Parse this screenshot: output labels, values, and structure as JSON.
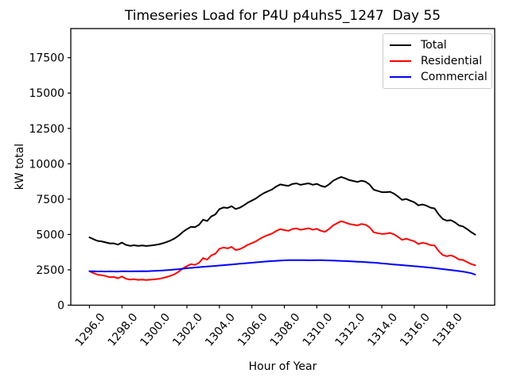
{
  "chart_data": {
    "type": "line",
    "title": "Timeseries Load for P4U p4uhs5_1247  Day 55",
    "xlabel": "Hour of Year",
    "ylabel": "kW total",
    "grid": false,
    "legend_position": "upper right",
    "xlim": [
      1294.85,
      1320.95
    ],
    "ylim": [
      0,
      19560
    ],
    "xticks": [
      1296,
      1298,
      1300,
      1302,
      1304,
      1306,
      1308,
      1310,
      1312,
      1314,
      1316,
      1318
    ],
    "xtick_labels": [
      "1296.0",
      "1298.0",
      "1300.0",
      "1302.0",
      "1304.0",
      "1306.0",
      "1308.0",
      "1310.0",
      "1312.0",
      "1314.0",
      "1316.0",
      "1318.0"
    ],
    "yticks": [
      0,
      2500,
      5000,
      7500,
      10000,
      12500,
      15000,
      17500
    ],
    "ytick_labels": [
      "0",
      "2500",
      "5000",
      "7500",
      "10000",
      "12500",
      "15000",
      "17500"
    ],
    "xtick_label_rotation_deg": 50,
    "x": [
      1296.0,
      1296.25,
      1296.5,
      1296.75,
      1297.0,
      1297.25,
      1297.5,
      1297.75,
      1298.0,
      1298.25,
      1298.5,
      1298.75,
      1299.0,
      1299.25,
      1299.5,
      1299.75,
      1300.0,
      1300.25,
      1300.5,
      1300.75,
      1301.0,
      1301.25,
      1301.5,
      1301.75,
      1302.0,
      1302.25,
      1302.5,
      1302.75,
      1303.0,
      1303.25,
      1303.5,
      1303.75,
      1304.0,
      1304.25,
      1304.5,
      1304.75,
      1305.0,
      1305.25,
      1305.5,
      1305.75,
      1306.0,
      1306.25,
      1306.5,
      1306.75,
      1307.0,
      1307.25,
      1307.5,
      1307.75,
      1308.0,
      1308.25,
      1308.5,
      1308.75,
      1309.0,
      1309.25,
      1309.5,
      1309.75,
      1310.0,
      1310.25,
      1310.5,
      1310.75,
      1311.0,
      1311.25,
      1311.5,
      1311.75,
      1312.0,
      1312.25,
      1312.5,
      1312.75,
      1313.0,
      1313.25,
      1313.5,
      1313.75,
      1314.0,
      1314.25,
      1314.5,
      1314.75,
      1315.0,
      1315.25,
      1315.5,
      1315.75,
      1316.0,
      1316.25,
      1316.5,
      1316.75,
      1317.0,
      1317.25,
      1317.5,
      1317.75,
      1318.0,
      1318.25,
      1318.5,
      1318.75,
      1319.0,
      1319.25,
      1319.5,
      1319.75
    ],
    "series": [
      {
        "name": "Total",
        "color": "#000000",
        "values": [
          4800,
          4665,
          4545,
          4510,
          4440,
          4370,
          4375,
          4280,
          4430,
          4265,
          4200,
          4240,
          4190,
          4220,
          4185,
          4215,
          4255,
          4300,
          4375,
          4465,
          4580,
          4725,
          4930,
          5180,
          5375,
          5540,
          5515,
          5690,
          6045,
          5955,
          6275,
          6420,
          6795,
          6910,
          6875,
          7000,
          6805,
          6890,
          7055,
          7250,
          7395,
          7550,
          7755,
          7930,
          8060,
          8190,
          8390,
          8535,
          8480,
          8440,
          8575,
          8615,
          8510,
          8570,
          8615,
          8515,
          8580,
          8440,
          8362,
          8545,
          8795,
          8945,
          9072,
          8970,
          8848,
          8782,
          8718,
          8802,
          8735,
          8528,
          8168,
          8078,
          7995,
          7990,
          8020,
          7890,
          7680,
          7450,
          7510,
          7390,
          7280,
          7060,
          7120,
          7040,
          6900,
          6840,
          6420,
          6100,
          5980,
          6010,
          5860,
          5640,
          5570,
          5380,
          5170,
          4990
        ]
      },
      {
        "name": "Residential",
        "color": "#ff0000",
        "values": [
          2400,
          2270,
          2160,
          2120,
          2060,
          1980,
          1990,
          1900,
          2030,
          1870,
          1810,
          1840,
          1790,
          1810,
          1780,
          1800,
          1830,
          1860,
          1920,
          1990,
          2080,
          2200,
          2380,
          2600,
          2760,
          2900,
          2850,
          3000,
          3330,
          3220,
          3520,
          3640,
          3990,
          4080,
          4020,
          4120,
          3900,
          3960,
          4100,
          4270,
          4390,
          4520,
          4700,
          4850,
          4960,
          5070,
          5250,
          5380,
          5310,
          5260,
          5390,
          5430,
          5330,
          5390,
          5440,
          5340,
          5400,
          5260,
          5190,
          5380,
          5640,
          5800,
          5940,
          5850,
          5740,
          5690,
          5640,
          5740,
          5690,
          5500,
          5160,
          5090,
          5040,
          5055,
          5115,
          5008,
          4825,
          4618,
          4705,
          4608,
          4525,
          4328,
          4415,
          4358,
          4248,
          4218,
          3835,
          3548,
          3462,
          3525,
          3412,
          3225,
          3198,
          3055,
          2908,
          2825
        ]
      },
      {
        "name": "Commercial",
        "color": "#0000ff",
        "values": [
          2400,
          2395,
          2385,
          2390,
          2380,
          2390,
          2385,
          2380,
          2400,
          2395,
          2390,
          2400,
          2400,
          2410,
          2405,
          2415,
          2425,
          2440,
          2455,
          2475,
          2500,
          2525,
          2550,
          2580,
          2615,
          2640,
          2665,
          2690,
          2715,
          2735,
          2755,
          2780,
          2805,
          2830,
          2855,
          2880,
          2905,
          2930,
          2955,
          2980,
          3005,
          3030,
          3055,
          3080,
          3100,
          3120,
          3140,
          3155,
          3170,
          3180,
          3185,
          3185,
          3180,
          3180,
          3175,
          3175,
          3180,
          3180,
          3172,
          3165,
          3155,
          3145,
          3132,
          3120,
          3108,
          3092,
          3078,
          3062,
          3045,
          3028,
          3008,
          2988,
          2955,
          2935,
          2905,
          2882,
          2855,
          2832,
          2805,
          2782,
          2755,
          2732,
          2705,
          2682,
          2652,
          2622,
          2585,
          2552,
          2518,
          2485,
          2448,
          2415,
          2372,
          2325,
          2262,
          2165
        ]
      }
    ]
  }
}
